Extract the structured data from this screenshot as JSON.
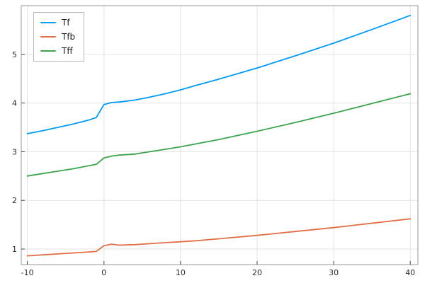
{
  "chart_data": {
    "type": "line",
    "title": "",
    "xlabel": "",
    "ylabel": "",
    "grid": true,
    "legend_position": "top-left",
    "xlim": [
      -10.8,
      41.0
    ],
    "ylim": [
      0.68,
      6.0
    ],
    "xticks": [
      -10,
      0,
      10,
      20,
      30,
      40
    ],
    "yticks": [
      1,
      2,
      3,
      4,
      5
    ],
    "x": [
      -10,
      -8,
      -6,
      -4,
      -2,
      -1,
      0,
      1,
      2,
      4,
      6,
      8,
      10,
      12,
      15,
      20,
      25,
      30,
      35,
      40
    ],
    "series": [
      {
        "name": "Tf",
        "color": "#009af9",
        "values": [
          3.37,
          3.43,
          3.5,
          3.57,
          3.65,
          3.7,
          3.97,
          4.01,
          4.02,
          4.06,
          4.12,
          4.19,
          4.27,
          4.36,
          4.49,
          4.72,
          4.97,
          5.23,
          5.51,
          5.8
        ]
      },
      {
        "name": "Tfb",
        "color": "#e26e46",
        "values": [
          0.86,
          0.88,
          0.9,
          0.92,
          0.94,
          0.95,
          1.07,
          1.1,
          1.08,
          1.09,
          1.11,
          1.13,
          1.15,
          1.17,
          1.21,
          1.28,
          1.36,
          1.44,
          1.53,
          1.62
        ]
      },
      {
        "name": "Tff",
        "color": "#3da44d",
        "values": [
          2.5,
          2.55,
          2.6,
          2.65,
          2.71,
          2.74,
          2.87,
          2.91,
          2.93,
          2.95,
          3.0,
          3.05,
          3.1,
          3.16,
          3.25,
          3.42,
          3.6,
          3.79,
          3.99,
          4.19
        ]
      }
    ],
    "style": {
      "grid_color": "#e3e3e3",
      "frame_color": "#9a9a9a",
      "tick_color": "#4a4a4a",
      "line_width": 1.8
    }
  }
}
